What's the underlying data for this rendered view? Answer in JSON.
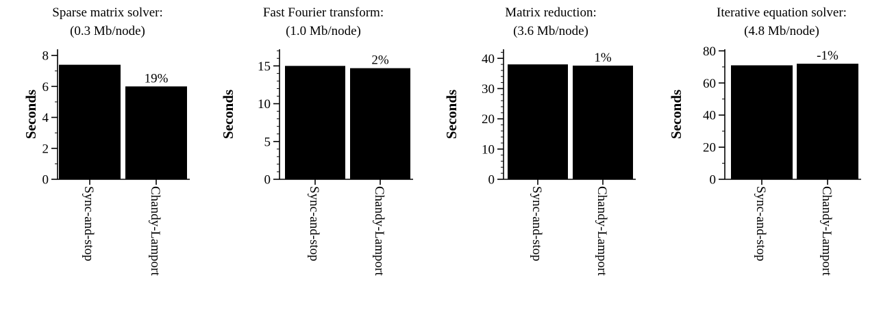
{
  "chart_data": [
    {
      "type": "bar",
      "title": "Sparse matrix solver:",
      "subtitle": "(0.3 Mb/node)",
      "ylabel": "Seconds",
      "categories": [
        "Sync-and-stop",
        "Chandy-Lamport"
      ],
      "values": [
        7.4,
        6.0
      ],
      "bar_labels": [
        "",
        "19%"
      ],
      "ylim": [
        0,
        8.4
      ],
      "yticks": [
        0,
        2,
        4,
        6,
        8
      ],
      "minor_tick_step": 1,
      "grid": false
    },
    {
      "type": "bar",
      "title": "Fast Fourier transform:",
      "subtitle": "(1.0 Mb/node)",
      "ylabel": "Seconds",
      "categories": [
        "Sync-and-stop",
        "Chandy-Lamport"
      ],
      "values": [
        15.0,
        14.7
      ],
      "bar_labels": [
        "",
        "2%"
      ],
      "ylim": [
        0,
        17.2
      ],
      "yticks": [
        0,
        5,
        10,
        15
      ],
      "minor_tick_step": 1,
      "grid": false
    },
    {
      "type": "bar",
      "title": "Matrix reduction:",
      "subtitle": "(3.6 Mb/node)",
      "ylabel": "Seconds",
      "categories": [
        "Sync-and-stop",
        "Chandy-Lamport"
      ],
      "values": [
        38.0,
        37.6
      ],
      "bar_labels": [
        "",
        "1%"
      ],
      "ylim": [
        0,
        43
      ],
      "yticks": [
        0,
        10,
        20,
        30,
        40
      ],
      "minor_tick_step": 2,
      "grid": false
    },
    {
      "type": "bar",
      "title": "Iterative equation solver:",
      "subtitle": "(4.8 Mb/node)",
      "ylabel": "Seconds",
      "categories": [
        "Sync-and-stop",
        "Chandy-Lamport"
      ],
      "values": [
        71.0,
        72.0
      ],
      "bar_labels": [
        "",
        "-1%"
      ],
      "ylim": [
        0,
        81
      ],
      "yticks": [
        0,
        20,
        40,
        60,
        80
      ],
      "minor_tick_step": 10,
      "grid": false
    }
  ]
}
